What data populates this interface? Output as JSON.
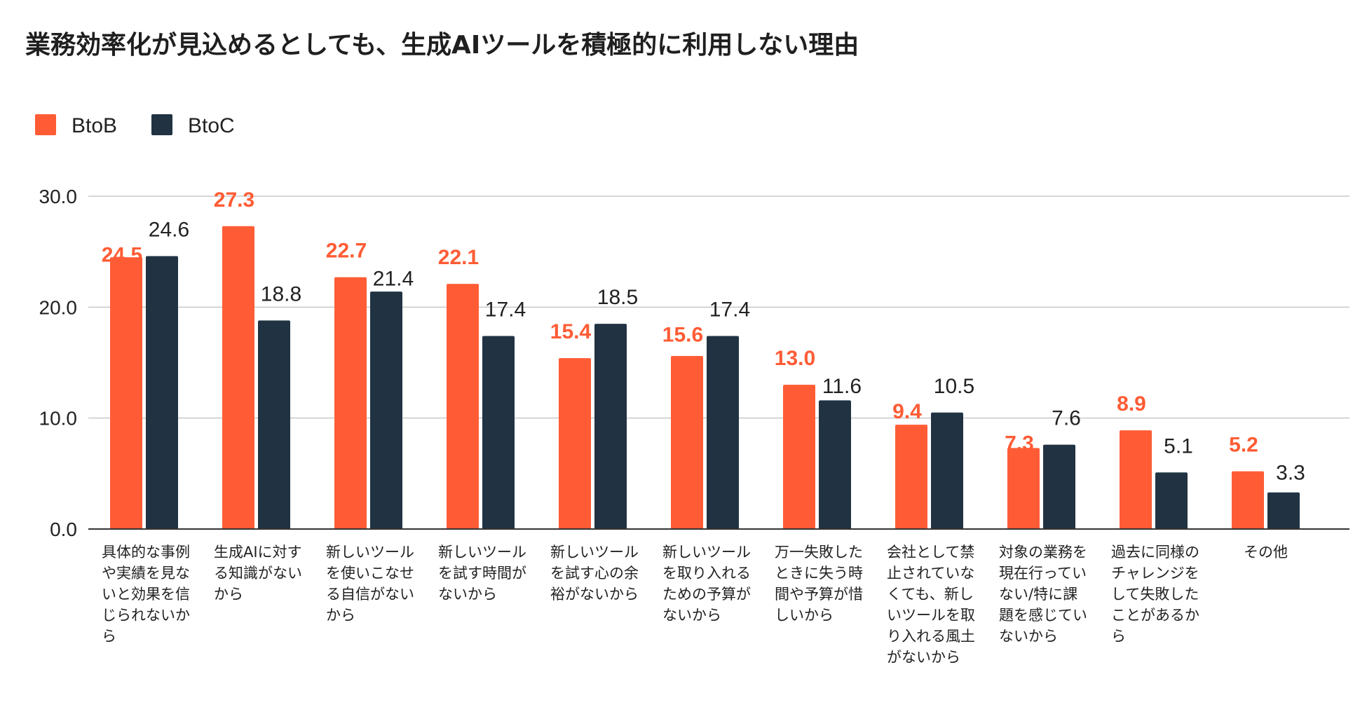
{
  "chart_data": {
    "type": "bar",
    "title": "業務効率化が見込めるとしても、生成AIツールを積極的に利用しない理由",
    "xlabel": "",
    "ylabel": "",
    "ylim": [
      0,
      30
    ],
    "yticks": [
      0,
      10,
      20,
      30
    ],
    "ytick_labels": [
      "0.0",
      "10.0",
      "20.0",
      "30.0"
    ],
    "grid": true,
    "legend_position": "top-left",
    "categories": [
      [
        "具体的な事例",
        "や実績を見な",
        "いと効果を信",
        "じられないか",
        "ら"
      ],
      [
        "生成AIに対す",
        "る知識がない",
        "から"
      ],
      [
        "新しいツール",
        "を使いこなせ",
        "る自信がない",
        "から"
      ],
      [
        "新しいツール",
        "を試す時間が",
        "ないから"
      ],
      [
        "新しいツール",
        "を試す心の余",
        "裕がないから"
      ],
      [
        "新しいツール",
        "を取り入れる",
        "ための予算が",
        "ないから"
      ],
      [
        "万一失敗した",
        "ときに失う時",
        "間や予算が惜",
        "しいから"
      ],
      [
        "会社として禁",
        "止されていな",
        "くても、新し",
        "いツールを取",
        "り入れる風土",
        "がないから"
      ],
      [
        "対象の業務を",
        "現在行ってい",
        "ない/特に課",
        "題を感じてい",
        "ないから"
      ],
      [
        "過去に同様の",
        "チャレンジを",
        "して失敗した",
        "ことがあるか",
        "ら"
      ],
      [
        "その他"
      ]
    ],
    "series": [
      {
        "name": "BtoB",
        "color": "#FF5C35",
        "values": [
          24.5,
          27.3,
          22.7,
          22.1,
          15.4,
          15.6,
          13.0,
          9.4,
          7.3,
          8.9,
          5.2
        ],
        "labels": [
          "24.5",
          "27.3",
          "22.7",
          "22.1",
          "15.4",
          "15.6",
          "13.0",
          "9.4",
          "7.3",
          "8.9",
          "5.2"
        ]
      },
      {
        "name": "BtoC",
        "color": "#213343",
        "values": [
          24.6,
          18.8,
          21.4,
          17.4,
          18.5,
          17.4,
          11.6,
          10.5,
          7.6,
          5.1,
          3.3
        ],
        "labels": [
          "24.6",
          "18.8",
          "21.4",
          "17.4",
          "18.5",
          "17.4",
          "11.6",
          "10.5",
          "7.6",
          "5.1",
          "3.3"
        ]
      }
    ]
  }
}
